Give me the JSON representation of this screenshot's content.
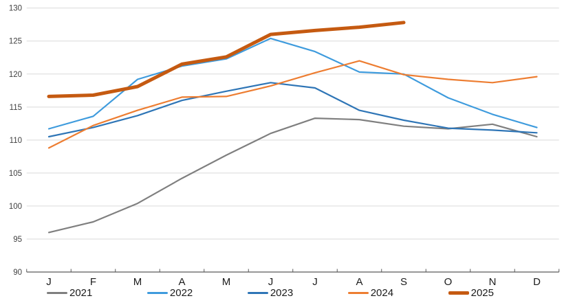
{
  "chart_data": {
    "type": "line",
    "title": "",
    "xlabel": "",
    "ylabel": "",
    "x_tick_labels": [
      "J",
      "F",
      "M",
      "A",
      "M",
      "J",
      "J",
      "A",
      "S",
      "O",
      "N",
      "D"
    ],
    "y_ticks": [
      90,
      95,
      100,
      105,
      110,
      115,
      120,
      125,
      130
    ],
    "ylim": [
      90,
      130
    ],
    "grid": "horizontal",
    "legend_position": "bottom",
    "axis_color": "#595959",
    "gridline_color": "#d9d9d9",
    "tick_label_color": "#404040",
    "month_label_color": "#1a1a1a",
    "series": [
      {
        "name": "2021",
        "color": "#7f7f7f",
        "width": 2.2,
        "values": [
          96.0,
          97.6,
          100.4,
          104.2,
          107.7,
          111.0,
          113.3,
          113.1,
          112.1,
          111.7,
          112.4,
          110.5
        ]
      },
      {
        "name": "2022",
        "color": "#3e9bdd",
        "width": 2.2,
        "values": [
          111.7,
          113.6,
          119.2,
          121.2,
          122.3,
          125.4,
          123.4,
          120.3,
          120.0,
          116.4,
          113.9,
          111.9
        ]
      },
      {
        "name": "2023",
        "color": "#2e75b6",
        "width": 2.2,
        "values": [
          110.5,
          111.9,
          113.7,
          116.0,
          117.4,
          118.7,
          117.9,
          114.5,
          113.0,
          111.8,
          111.5,
          111.1
        ]
      },
      {
        "name": "2024",
        "color": "#ed7d31",
        "width": 2.2,
        "values": [
          108.8,
          112.2,
          114.5,
          116.5,
          116.6,
          118.2,
          120.2,
          122.0,
          119.9,
          119.2,
          118.7,
          119.6
        ]
      },
      {
        "name": "2025",
        "color": "#c55a11",
        "width": 5,
        "values": [
          116.6,
          116.8,
          118.1,
          121.5,
          122.6,
          126.0,
          126.6,
          127.1,
          127.8
        ]
      }
    ]
  }
}
